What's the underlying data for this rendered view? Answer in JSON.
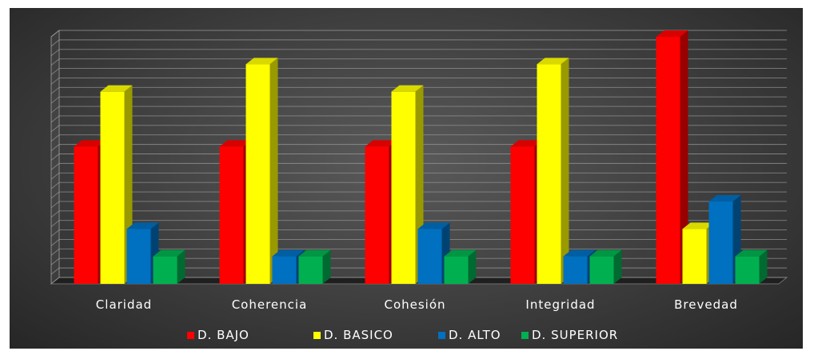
{
  "chart_data": {
    "type": "bar",
    "categories": [
      "Claridad",
      "Coherencia",
      "Cohesión",
      "Integridad",
      "Brevedad"
    ],
    "series": [
      {
        "name": "D. BAJO",
        "color": "#ff0000",
        "values": [
          50,
          50,
          50,
          50,
          90
        ]
      },
      {
        "name": "D. BASICO",
        "color": "#ffff00",
        "values": [
          70,
          80,
          70,
          80,
          20
        ]
      },
      {
        "name": "D. ALTO",
        "color": "#0070c0",
        "values": [
          20,
          10,
          20,
          10,
          30
        ]
      },
      {
        "name": "D. SUPERIOR",
        "color": "#00b050",
        "values": [
          10,
          10,
          10,
          10,
          10
        ]
      }
    ],
    "ylim": [
      0,
      90
    ],
    "grid": true,
    "legend": "bottom",
    "title": "",
    "xlabel": "",
    "ylabel": ""
  }
}
